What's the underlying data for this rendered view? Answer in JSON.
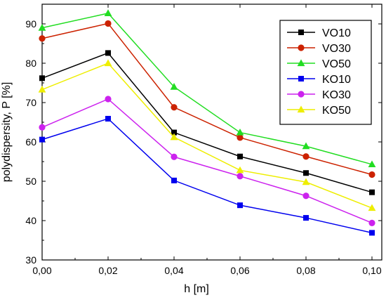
{
  "chart_data": {
    "type": "line",
    "xlabel": "h [m]",
    "ylabel": "polydispersity, P [%]",
    "x": [
      0.0,
      0.02,
      0.04,
      0.06,
      0.08,
      0.1
    ],
    "x_tick_labels": [
      "0,00",
      "0,02",
      "0,04",
      "0,06",
      "0,08",
      "0,10"
    ],
    "y_tick_values": [
      30,
      40,
      50,
      60,
      70,
      80,
      90
    ],
    "y_tick_labels": [
      "30",
      "40",
      "50",
      "60",
      "70",
      "80",
      "90"
    ],
    "xlim": [
      0.0,
      0.1
    ],
    "ylim": [
      30,
      95
    ],
    "grid": false,
    "legend_placement": "top-right",
    "series": [
      {
        "name": "VO10",
        "color": "#000000",
        "marker": "square",
        "values": [
          76.2,
          82.6,
          62.4,
          56.3,
          52.1,
          47.2
        ]
      },
      {
        "name": "VO30",
        "color": "#cc2200",
        "marker": "circle",
        "values": [
          86.3,
          90.1,
          68.8,
          61.1,
          56.3,
          51.7
        ]
      },
      {
        "name": "VO50",
        "color": "#22dd22",
        "marker": "triangle",
        "values": [
          89.0,
          92.7,
          74.0,
          62.4,
          58.9,
          54.3
        ]
      },
      {
        "name": "KO10",
        "color": "#0000ee",
        "marker": "square",
        "values": [
          60.6,
          65.9,
          50.2,
          43.9,
          40.7,
          36.9
        ]
      },
      {
        "name": "KO30",
        "color": "#cc22ee",
        "marker": "circle",
        "values": [
          63.7,
          70.9,
          56.2,
          51.3,
          46.3,
          39.4
        ]
      },
      {
        "name": "KO50",
        "color": "#eeee00",
        "marker": "triangle",
        "values": [
          73.3,
          80.0,
          61.2,
          52.8,
          49.8,
          43.2
        ]
      }
    ]
  }
}
